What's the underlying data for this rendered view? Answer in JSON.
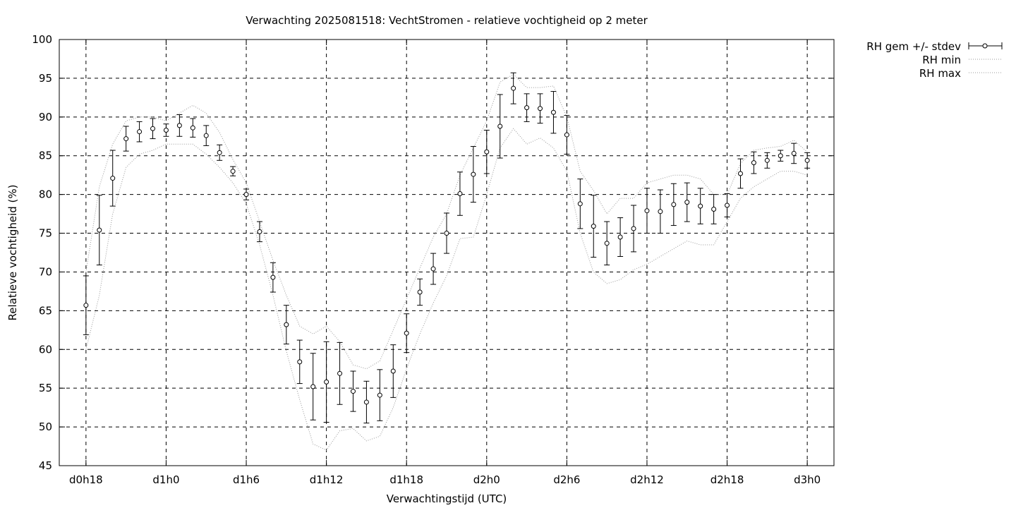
{
  "chart_data": {
    "type": "line",
    "title": "Verwachting 2025081518: VechtStromen - relatieve vochtigheid op 2 meter",
    "xlabel": "Verwachtingstijd (UTC)",
    "ylabel": "Relatieve vochtigheid (%)",
    "x_tick_labels": [
      "d0h18",
      "d1h0",
      "d1h6",
      "d1h12",
      "d1h18",
      "d2h0",
      "d2h6",
      "d2h12",
      "d2h18",
      "d3h0"
    ],
    "x_tick_hours": [
      18,
      24,
      30,
      36,
      42,
      48,
      54,
      60,
      66,
      72
    ],
    "xlim": [
      16,
      74
    ],
    "ylim": [
      45,
      100
    ],
    "y_ticks": [
      45,
      50,
      55,
      60,
      65,
      70,
      75,
      80,
      85,
      90,
      95,
      100
    ],
    "grid": true,
    "legend_position": "outside-top-right",
    "series": [
      {
        "name": "RH gem +/- stdev",
        "style": "points-errorbars",
        "x": [
          18,
          19,
          20,
          21,
          22,
          23,
          24,
          25,
          26,
          27,
          28,
          29,
          30,
          31,
          32,
          33,
          34,
          35,
          36,
          37,
          38,
          39,
          40,
          41,
          42,
          43,
          44,
          45,
          46,
          47,
          48,
          49,
          50,
          51,
          52,
          53,
          54,
          55,
          56,
          57,
          58,
          59,
          60,
          61,
          62,
          63,
          64,
          65,
          66,
          67,
          68,
          69,
          70,
          71,
          72
        ],
        "y": [
          65.7,
          75.4,
          82.1,
          87.2,
          88.1,
          88.5,
          88.3,
          88.9,
          88.6,
          87.6,
          85.4,
          83.0,
          80.0,
          75.2,
          69.3,
          63.2,
          58.4,
          55.2,
          55.8,
          56.9,
          54.6,
          53.2,
          54.1,
          57.2,
          62.1,
          67.4,
          70.4,
          75.0,
          80.1,
          82.6,
          85.5,
          88.8,
          93.7,
          91.2,
          91.1,
          90.6,
          87.7,
          78.8,
          75.9,
          73.7,
          74.5,
          75.6,
          77.9,
          77.8,
          78.7,
          79.0,
          78.5,
          78.1,
          78.6,
          82.7,
          84.1,
          84.4,
          85.0,
          85.3,
          84.4
        ],
        "stdev": [
          3.8,
          4.5,
          3.6,
          1.6,
          1.3,
          1.3,
          0.8,
          1.4,
          1.2,
          1.3,
          1.0,
          0.6,
          0.7,
          1.3,
          1.9,
          2.5,
          2.8,
          4.3,
          5.2,
          4.0,
          2.6,
          2.7,
          3.3,
          3.4,
          2.5,
          1.7,
          2.0,
          2.6,
          2.8,
          3.6,
          2.8,
          4.1,
          2.0,
          1.8,
          1.9,
          2.7,
          2.5,
          3.2,
          4.0,
          2.8,
          2.5,
          3.0,
          2.9,
          2.8,
          2.7,
          2.5,
          2.3,
          1.9,
          1.5,
          1.9,
          1.4,
          1.0,
          0.7,
          1.3,
          1.0
        ]
      },
      {
        "name": "RH min",
        "style": "dotted",
        "x": [
          18,
          19,
          20,
          21,
          22,
          23,
          24,
          25,
          26,
          27,
          28,
          29,
          30,
          31,
          32,
          33,
          34,
          35,
          36,
          37,
          38,
          39,
          40,
          41,
          42,
          43,
          44,
          45,
          46,
          47,
          48,
          49,
          50,
          51,
          52,
          53,
          54,
          55,
          56,
          57,
          58,
          59,
          60,
          61,
          62,
          63,
          64,
          65,
          66,
          67,
          68,
          69,
          70,
          71,
          72
        ],
        "y": [
          60.0,
          67.0,
          77.5,
          83.5,
          85.2,
          85.7,
          86.5,
          86.5,
          86.5,
          85.2,
          83.5,
          81.5,
          78.8,
          73.5,
          67.0,
          59.8,
          53.5,
          47.8,
          47.0,
          49.5,
          49.8,
          48.2,
          48.8,
          52.5,
          57.5,
          62.0,
          66.0,
          69.5,
          74.3,
          74.5,
          80.0,
          86.0,
          88.5,
          86.5,
          87.3,
          86.0,
          83.0,
          75.0,
          70.0,
          68.5,
          69.0,
          70.3,
          71.0,
          72.0,
          73.0,
          74.0,
          73.5,
          73.5,
          76.5,
          79.5,
          81.0,
          82.0,
          83.0,
          83.0,
          82.5
        ]
      },
      {
        "name": "RH max",
        "style": "dotted",
        "x": [
          18,
          19,
          20,
          21,
          22,
          23,
          24,
          25,
          26,
          27,
          28,
          29,
          30,
          31,
          32,
          33,
          34,
          35,
          36,
          37,
          38,
          39,
          40,
          41,
          42,
          43,
          44,
          45,
          46,
          47,
          48,
          49,
          50,
          51,
          52,
          53,
          54,
          55,
          56,
          57,
          58,
          59,
          60,
          61,
          62,
          63,
          64,
          65,
          66,
          67,
          68,
          69,
          70,
          71,
          72
        ],
        "y": [
          70.0,
          81.0,
          86.5,
          89.5,
          90.0,
          90.0,
          89.5,
          90.5,
          91.5,
          90.5,
          88.0,
          84.5,
          81.5,
          76.5,
          71.5,
          67.0,
          63.0,
          62.0,
          63.0,
          61.0,
          58.0,
          57.5,
          58.5,
          62.5,
          66.5,
          70.5,
          74.5,
          77.5,
          82.5,
          86.0,
          89.5,
          94.5,
          95.5,
          93.8,
          93.8,
          94.0,
          90.0,
          83.0,
          80.5,
          77.5,
          79.5,
          79.5,
          81.5,
          82.0,
          82.5,
          82.5,
          82.0,
          80.0,
          80.0,
          84.0,
          85.7,
          86.0,
          86.2,
          87.0,
          85.5
        ]
      }
    ]
  }
}
